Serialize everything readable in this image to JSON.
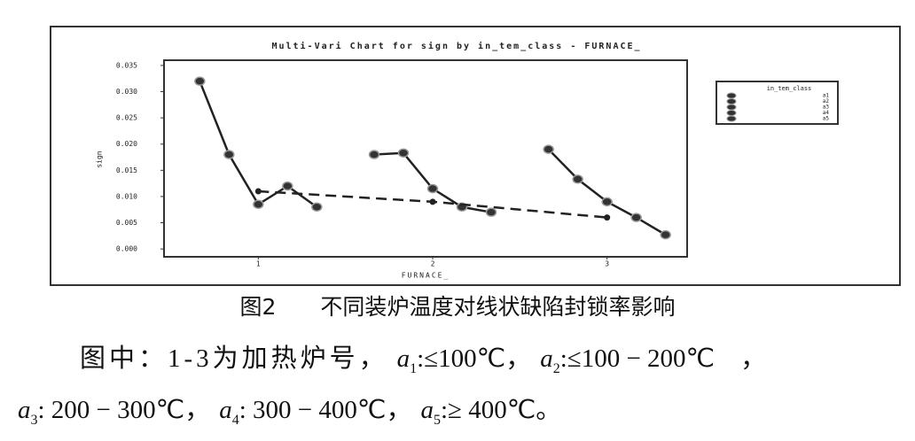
{
  "chart_data": {
    "type": "multi-vari",
    "title": "Multi-Vari Chart for sign by in_tem_class - FURNACE_",
    "y_label": "sign",
    "x_label": "FURNACE_",
    "legend_title": "in_tem_class",
    "categories": [
      "1",
      "2",
      "3"
    ],
    "series": [
      {
        "name": "a1",
        "color": "#333333",
        "values": [
          0.032,
          0.018,
          0.019
        ]
      },
      {
        "name": "a2",
        "color": "#333333",
        "values": [
          0.018,
          0.0183,
          0.0133
        ]
      },
      {
        "name": "a3",
        "color": "#333333",
        "values": [
          0.0085,
          0.0115,
          0.009
        ]
      },
      {
        "name": "a4",
        "color": "#333333",
        "values": [
          0.012,
          0.008,
          0.006
        ]
      },
      {
        "name": "a5",
        "color": "#333333",
        "values": [
          0.008,
          0.007,
          0.0027
        ]
      }
    ],
    "means": {
      "values": [
        0.011,
        0.009,
        0.006
      ],
      "color": "#222222"
    },
    "ylim": [
      -0.0015,
      0.036
    ],
    "yticks": [
      {
        "value": 0,
        "label": "0.000"
      },
      0.005,
      {
        "value": 0.01,
        "label": "0.010"
      },
      0.015,
      {
        "value": 0.02,
        "label": "0.020"
      },
      0.025,
      {
        "value": 0.03,
        "label": "0.030"
      },
      0.035
    ],
    "legend_position": "right"
  },
  "caption": "图2　　不同装炉温度对线状缺陷封锁率影响",
  "note": {
    "lead": "图中：1-3为加热炉号，",
    "conditions": [
      {
        "symbol": "a",
        "index": "1",
        "text": ":≤100℃，"
      },
      {
        "symbol": "a",
        "index": "2",
        "text": ":≤100 − 200℃　，"
      },
      {
        "symbol": "a",
        "index": "3",
        "text": ": 200 − 300℃，"
      },
      {
        "symbol": "a",
        "index": "4",
        "text": ": 300 − 400℃，"
      },
      {
        "symbol": "a",
        "index": "5",
        "text": ":≥ 400℃。"
      }
    ]
  }
}
